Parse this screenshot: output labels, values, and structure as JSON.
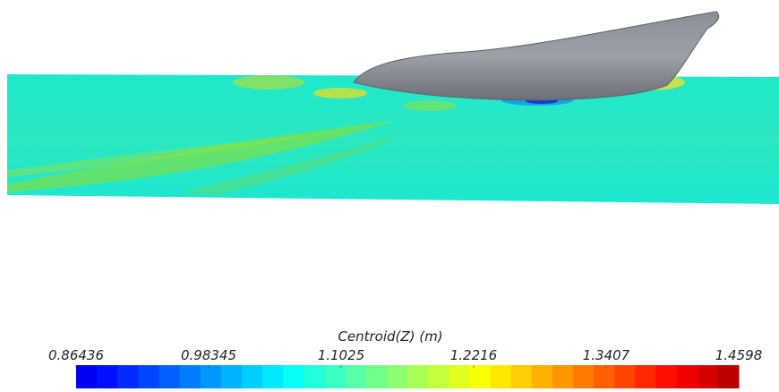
{
  "colorbar": {
    "title": "Centroid(Z) (m)",
    "range": [
      0.86436,
      1.4598
    ],
    "ticks": [
      0.86436,
      0.98345,
      1.1025,
      1.2216,
      1.3407,
      1.4598
    ]
  }
}
